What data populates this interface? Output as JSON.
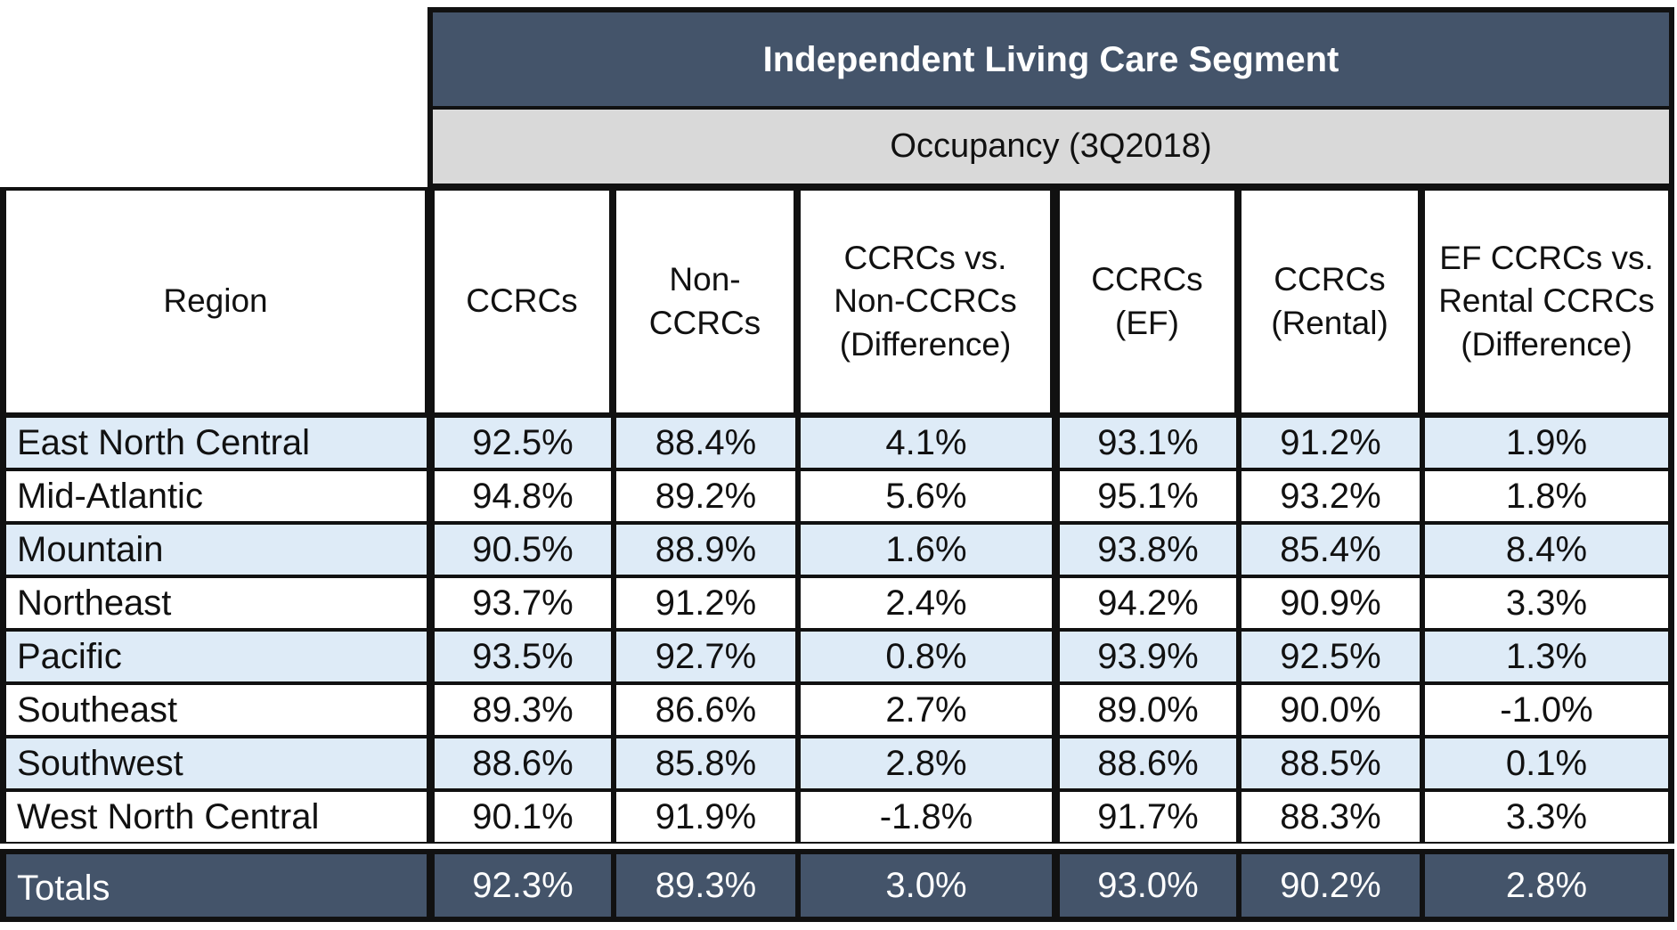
{
  "chart_data": {
    "type": "table",
    "title": "Independent Living Care Segment",
    "subtitle": "Occupancy (3Q2018)",
    "columns": [
      "Region",
      "CCRCs",
      "Non-CCRCs",
      "CCRCs vs. Non-CCRCs (Difference)",
      "CCRCs (EF)",
      "CCRCs (Rental)",
      "EF CCRCs vs. Rental CCRCs (Difference)"
    ],
    "rows": [
      [
        "East North Central",
        "92.5%",
        "88.4%",
        "4.1%",
        "93.1%",
        "91.2%",
        "1.9%"
      ],
      [
        "Mid-Atlantic",
        "94.8%",
        "89.2%",
        "5.6%",
        "95.1%",
        "93.2%",
        "1.8%"
      ],
      [
        "Mountain",
        "90.5%",
        "88.9%",
        "1.6%",
        "93.8%",
        "85.4%",
        "8.4%"
      ],
      [
        "Northeast",
        "93.7%",
        "91.2%",
        "2.4%",
        "94.2%",
        "90.9%",
        "3.3%"
      ],
      [
        "Pacific",
        "93.5%",
        "92.7%",
        "0.8%",
        "93.9%",
        "92.5%",
        "1.3%"
      ],
      [
        "Southeast",
        "89.3%",
        "86.6%",
        "2.7%",
        "89.0%",
        "90.0%",
        "-1.0%"
      ],
      [
        "Southwest",
        "88.6%",
        "85.8%",
        "2.8%",
        "88.6%",
        "88.5%",
        "0.1%"
      ],
      [
        "West North Central",
        "90.1%",
        "91.9%",
        "-1.8%",
        "91.7%",
        "88.3%",
        "3.3%"
      ]
    ],
    "totals": [
      "Totals",
      "92.3%",
      "89.3%",
      "3.0%",
      "93.0%",
      "90.2%",
      "2.8%"
    ]
  },
  "colors": {
    "header_band": "#44546a",
    "subheader_band": "#d9d9d9",
    "stripe": "#deebf7",
    "border": "#111111"
  }
}
